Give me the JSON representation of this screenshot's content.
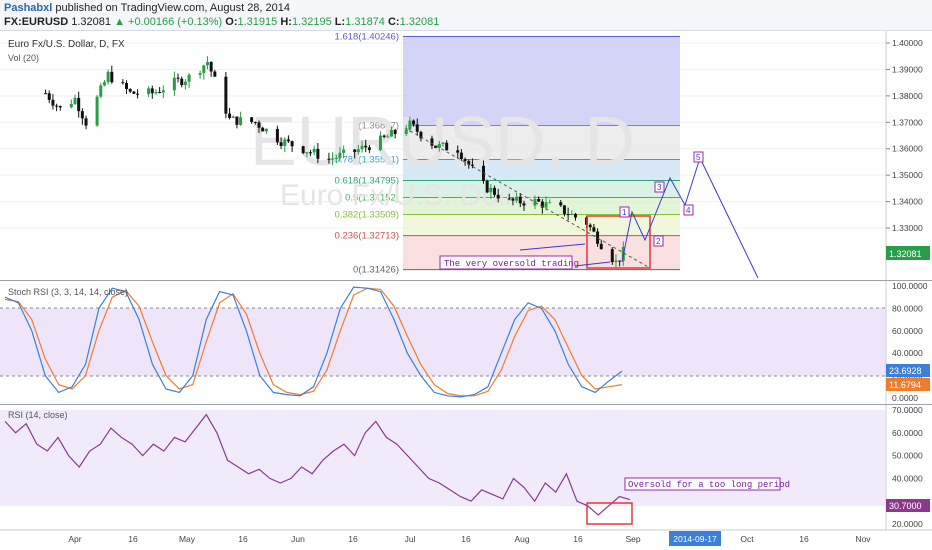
{
  "header": {
    "author": "Pashabxl",
    "published_text": "published on TradingView.com, August 28, 2014",
    "symbol": "FX:EURUSD",
    "last": "1.32081",
    "change": "+0.00166 (+0.13%)",
    "o_label": "O:",
    "o_value": "1.31915",
    "h_label": "H:",
    "h_value": "1.32195",
    "l_label": "L:",
    "l_value": "1.31874",
    "c_label": "C:",
    "c_value": "1.32081"
  },
  "main_pane": {
    "title": "Euro Fx/U.S. Dollar, D, FX",
    "vol_label": "Vol (20)",
    "watermark_symbol": "EURUSD, D",
    "watermark_name": "Euro Fx/U.S. Dollar",
    "price_ticks": [
      "1.40000",
      "1.39000",
      "1.38000",
      "1.37000",
      "1.36000",
      "1.35000",
      "1.34000",
      "1.33000"
    ],
    "last_price_tag": "1.32081",
    "fib_levels": [
      {
        "label": "1.618(1.40246)",
        "price": 1.40246,
        "color": "#5b5bd6"
      },
      {
        "label": "1(1.36877)",
        "price": 1.36877,
        "color": "#888888"
      },
      {
        "label": "0.786(1.35591)",
        "price": 1.35591,
        "color": "#3b9bd0"
      },
      {
        "label": "0.618(1.34795)",
        "price": 1.34795,
        "color": "#3aa37a"
      },
      {
        "label": "0.5(1.34152)",
        "price": 1.34152,
        "color": "#4caf50"
      },
      {
        "label": "0.382(1.33509)",
        "price": 1.33509,
        "color": "#8bbd3a"
      },
      {
        "label": "0.236(1.32713)",
        "price": 1.32713,
        "color": "#d84b4b"
      },
      {
        "label": "0(1.31426)",
        "price": 1.31426,
        "color": "#666666"
      }
    ],
    "annotation_text": "The very oversold trading",
    "wave_labels": [
      "1",
      "2",
      "3",
      "4",
      "5"
    ]
  },
  "stoch_pane": {
    "title": "Stoch RSI (3, 3, 14, 14, close)",
    "ticks": [
      "100.0000",
      "80.0000",
      "60.0000",
      "40.0000",
      "20.0000",
      "0.0000"
    ],
    "k_tag": "23.6928",
    "d_tag": "11.6794",
    "k_color": "#3b7fd9",
    "d_color": "#f07c2b"
  },
  "rsi_pane": {
    "title": "RSI (14, close)",
    "ticks": [
      "70.0000",
      "60.0000",
      "50.0000",
      "40.0000",
      "20.0000"
    ],
    "last_tag": "30.7000",
    "annotation_text": "Oversold for a too long period",
    "line_color": "#8b3a8b"
  },
  "time_axis": {
    "labels": [
      "Apr",
      "16",
      "May",
      "16",
      "Jun",
      "16",
      "Jul",
      "16",
      "Aug",
      "16",
      "Sep",
      "2014-09-17",
      "Oct",
      "16",
      "Nov"
    ],
    "highlight": "2014-09-17"
  },
  "chart_data": {
    "type": "candlestick",
    "symbol": "EURUSD",
    "timeframe": "D",
    "x_range": [
      "2014-03",
      "2014-11"
    ],
    "price_range": [
      1.31,
      1.405
    ],
    "close_series_approx": [
      {
        "x": "2014-03-24",
        "y": 1.381
      },
      {
        "x": "2014-03-28",
        "y": 1.375
      },
      {
        "x": "2014-04-01",
        "y": 1.379
      },
      {
        "x": "2014-04-04",
        "y": 1.37
      },
      {
        "x": "2014-04-10",
        "y": 1.388
      },
      {
        "x": "2014-04-16",
        "y": 1.381
      },
      {
        "x": "2014-04-22",
        "y": 1.381
      },
      {
        "x": "2014-04-28",
        "y": 1.385
      },
      {
        "x": "2014-05-02",
        "y": 1.387
      },
      {
        "x": "2014-05-07",
        "y": 1.393
      },
      {
        "x": "2014-05-13",
        "y": 1.371
      },
      {
        "x": "2014-05-20",
        "y": 1.37
      },
      {
        "x": "2014-05-27",
        "y": 1.363
      },
      {
        "x": "2014-06-02",
        "y": 1.36
      },
      {
        "x": "2014-06-09",
        "y": 1.356
      },
      {
        "x": "2014-06-16",
        "y": 1.359
      },
      {
        "x": "2014-06-23",
        "y": 1.363
      },
      {
        "x": "2014-07-01",
        "y": 1.369
      },
      {
        "x": "2014-07-08",
        "y": 1.361
      },
      {
        "x": "2014-07-14",
        "y": 1.36
      },
      {
        "x": "2014-07-21",
        "y": 1.346
      },
      {
        "x": "2014-07-28",
        "y": 1.34
      },
      {
        "x": "2014-08-04",
        "y": 1.34
      },
      {
        "x": "2014-08-11",
        "y": 1.337
      },
      {
        "x": "2014-08-18",
        "y": 1.332
      },
      {
        "x": "2014-08-22",
        "y": 1.324
      },
      {
        "x": "2014-08-26",
        "y": 1.317
      },
      {
        "x": "2014-08-28",
        "y": 1.32081
      }
    ]
  }
}
